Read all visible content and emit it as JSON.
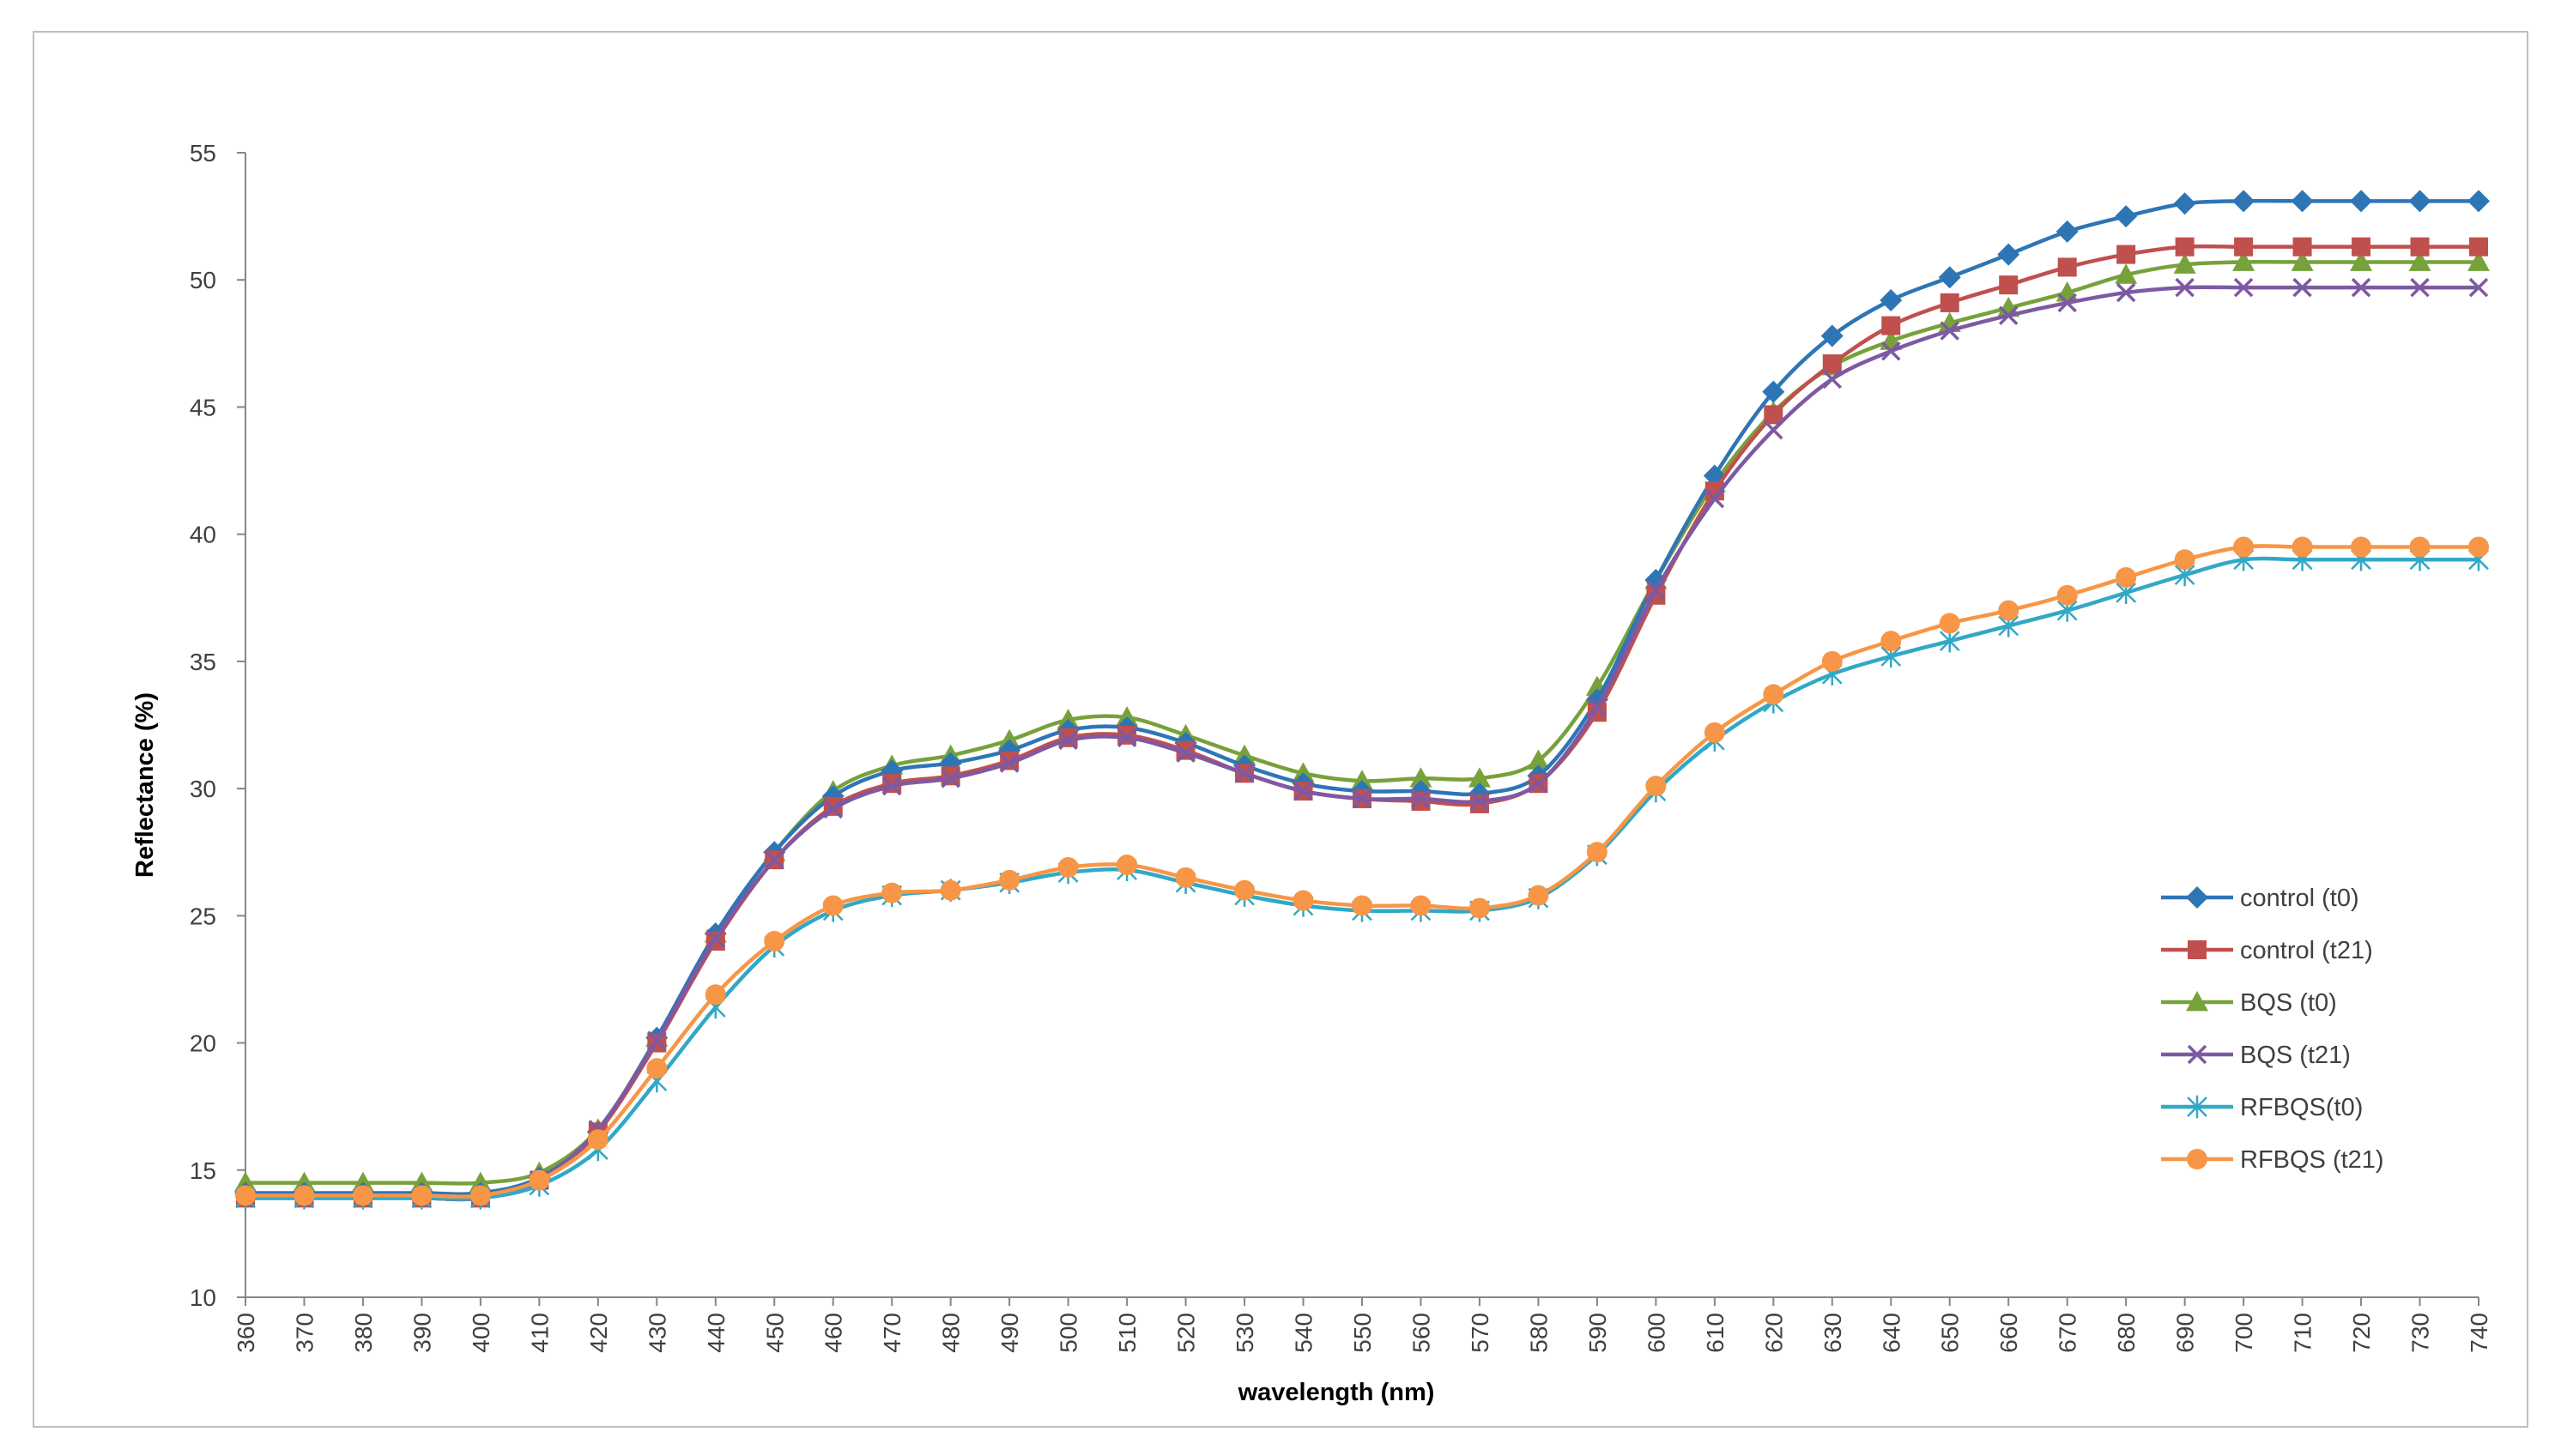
{
  "chart_data": {
    "type": "line",
    "title": "",
    "xlabel": "wavelength (nm)",
    "ylabel": "Reflectance (%)",
    "xlim": [
      360,
      740
    ],
    "ylim": [
      10,
      55
    ],
    "yticks": [
      10,
      15,
      20,
      25,
      30,
      35,
      40,
      45,
      50,
      55
    ],
    "x": [
      360,
      370,
      380,
      390,
      400,
      410,
      420,
      430,
      440,
      450,
      460,
      470,
      480,
      490,
      500,
      510,
      520,
      530,
      540,
      550,
      560,
      570,
      580,
      590,
      600,
      610,
      620,
      630,
      640,
      650,
      660,
      670,
      680,
      690,
      700,
      710,
      720,
      730,
      740
    ],
    "x_tick_labels": [
      "360",
      "370",
      "380",
      "390",
      "400",
      "410",
      "420",
      "430",
      "440",
      "450",
      "460",
      "470",
      "480",
      "490",
      "500",
      "510",
      "520",
      "530",
      "540",
      "550",
      "560",
      "570",
      "580",
      "590",
      "600",
      "610",
      "620",
      "630",
      "640",
      "650",
      "660",
      "670",
      "680",
      "690",
      "700",
      "710",
      "720",
      "730",
      "740"
    ],
    "grid": false,
    "legend_position": "right",
    "series": [
      {
        "name": "control (t0)",
        "color": "#2E75B6",
        "marker": "diamond",
        "values": [
          14.1,
          14.1,
          14.1,
          14.1,
          14.1,
          14.7,
          16.5,
          20.2,
          24.3,
          27.5,
          29.7,
          30.7,
          31.0,
          31.5,
          32.3,
          32.4,
          31.8,
          30.9,
          30.2,
          29.9,
          29.9,
          29.8,
          30.5,
          33.5,
          38.2,
          42.3,
          45.6,
          47.8,
          49.2,
          50.1,
          51.0,
          51.9,
          52.5,
          53.0,
          53.1,
          53.1,
          53.1,
          53.1,
          53.1
        ]
      },
      {
        "name": "control (t21)",
        "color": "#C0504D",
        "marker": "square",
        "values": [
          13.9,
          13.9,
          13.9,
          13.9,
          13.9,
          14.6,
          16.5,
          20.0,
          24.0,
          27.2,
          29.3,
          30.2,
          30.5,
          31.1,
          32.0,
          32.1,
          31.5,
          30.6,
          29.9,
          29.6,
          29.5,
          29.4,
          30.2,
          33.0,
          37.6,
          41.7,
          44.7,
          46.7,
          48.2,
          49.1,
          49.8,
          50.5,
          51.0,
          51.3,
          51.3,
          51.3,
          51.3,
          51.3,
          51.3
        ]
      },
      {
        "name": "BQS (t0)",
        "color": "#77A13B",
        "marker": "triangle",
        "values": [
          14.5,
          14.5,
          14.5,
          14.5,
          14.5,
          14.9,
          16.6,
          20.2,
          24.3,
          27.5,
          29.9,
          30.9,
          31.3,
          31.9,
          32.7,
          32.8,
          32.1,
          31.3,
          30.6,
          30.3,
          30.4,
          30.4,
          31.1,
          34.0,
          38.2,
          42.0,
          44.8,
          46.6,
          47.6,
          48.3,
          48.9,
          49.5,
          50.2,
          50.6,
          50.7,
          50.7,
          50.7,
          50.7,
          50.7
        ]
      },
      {
        "name": "BQS (t21)",
        "color": "#7E59A3",
        "marker": "x",
        "values": [
          13.9,
          13.9,
          13.9,
          13.9,
          13.9,
          14.6,
          16.6,
          20.1,
          24.1,
          27.2,
          29.2,
          30.1,
          30.4,
          31.0,
          31.9,
          32.0,
          31.4,
          30.6,
          29.9,
          29.6,
          29.6,
          29.5,
          30.2,
          33.2,
          37.8,
          41.4,
          44.1,
          46.1,
          47.2,
          48.0,
          48.6,
          49.1,
          49.5,
          49.7,
          49.7,
          49.7,
          49.7,
          49.7,
          49.7
        ]
      },
      {
        "name": "RFBQS(t0)",
        "color": "#31A8C7",
        "marker": "star",
        "values": [
          13.9,
          13.9,
          13.9,
          13.9,
          13.9,
          14.4,
          15.8,
          18.5,
          21.4,
          23.8,
          25.2,
          25.8,
          26.0,
          26.3,
          26.7,
          26.8,
          26.3,
          25.8,
          25.4,
          25.2,
          25.2,
          25.2,
          25.7,
          27.4,
          29.9,
          31.9,
          33.4,
          34.5,
          35.2,
          35.8,
          36.4,
          37.0,
          37.7,
          38.4,
          39.0,
          39.0,
          39.0,
          39.0,
          39.0
        ]
      },
      {
        "name": "RFBQS (t21)",
        "color": "#F79646",
        "marker": "circle",
        "values": [
          14.0,
          14.0,
          14.0,
          14.0,
          14.0,
          14.6,
          16.2,
          19.0,
          21.9,
          24.0,
          25.4,
          25.9,
          26.0,
          26.4,
          26.9,
          27.0,
          26.5,
          26.0,
          25.6,
          25.4,
          25.4,
          25.3,
          25.8,
          27.5,
          30.1,
          32.2,
          33.7,
          35.0,
          35.8,
          36.5,
          37.0,
          37.6,
          38.3,
          39.0,
          39.5,
          39.5,
          39.5,
          39.5,
          39.5
        ]
      }
    ]
  }
}
